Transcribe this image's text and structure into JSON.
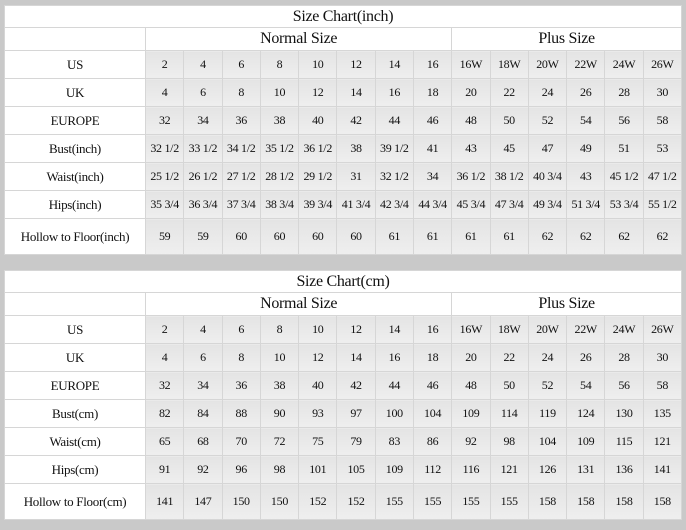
{
  "tables": [
    {
      "title": "Size Chart(inch)",
      "groups": [
        {
          "label": "Normal Size",
          "span": 8
        },
        {
          "label": "Plus Size",
          "span": 6
        }
      ],
      "rows": [
        {
          "label": "US",
          "values": [
            "2",
            "4",
            "6",
            "8",
            "10",
            "12",
            "14",
            "16",
            "16W",
            "18W",
            "20W",
            "22W",
            "24W",
            "26W"
          ]
        },
        {
          "label": "UK",
          "values": [
            "4",
            "6",
            "8",
            "10",
            "12",
            "14",
            "16",
            "18",
            "20",
            "22",
            "24",
            "26",
            "28",
            "30"
          ]
        },
        {
          "label": "EUROPE",
          "values": [
            "32",
            "34",
            "36",
            "38",
            "40",
            "42",
            "44",
            "46",
            "48",
            "50",
            "52",
            "54",
            "56",
            "58"
          ]
        },
        {
          "label": "Bust(inch)",
          "values": [
            "32 1/2",
            "33 1/2",
            "34 1/2",
            "35 1/2",
            "36 1/2",
            "38",
            "39 1/2",
            "41",
            "43",
            "45",
            "47",
            "49",
            "51",
            "53"
          ]
        },
        {
          "label": "Waist(inch)",
          "values": [
            "25 1/2",
            "26 1/2",
            "27 1/2",
            "28 1/2",
            "29 1/2",
            "31",
            "32 1/2",
            "34",
            "36 1/2",
            "38 1/2",
            "40 3/4",
            "43",
            "45 1/2",
            "47 1/2"
          ]
        },
        {
          "label": "Hips(inch)",
          "values": [
            "35 3/4",
            "36 3/4",
            "37 3/4",
            "38 3/4",
            "39 3/4",
            "41 3/4",
            "42 3/4",
            "44 3/4",
            "45 3/4",
            "47 3/4",
            "49 3/4",
            "51 3/4",
            "53 3/4",
            "55 1/2"
          ]
        },
        {
          "label": "Hollow to Floor(inch)",
          "values": [
            "59",
            "59",
            "60",
            "60",
            "60",
            "60",
            "61",
            "61",
            "61",
            "61",
            "62",
            "62",
            "62",
            "62"
          ]
        }
      ]
    },
    {
      "title": "Size Chart(cm)",
      "groups": [
        {
          "label": "Normal Size",
          "span": 8
        },
        {
          "label": "Plus Size",
          "span": 6
        }
      ],
      "rows": [
        {
          "label": "US",
          "values": [
            "2",
            "4",
            "6",
            "8",
            "10",
            "12",
            "14",
            "16",
            "16W",
            "18W",
            "20W",
            "22W",
            "24W",
            "26W"
          ]
        },
        {
          "label": "UK",
          "values": [
            "4",
            "6",
            "8",
            "10",
            "12",
            "14",
            "16",
            "18",
            "20",
            "22",
            "24",
            "26",
            "28",
            "30"
          ]
        },
        {
          "label": "EUROPE",
          "values": [
            "32",
            "34",
            "36",
            "38",
            "40",
            "42",
            "44",
            "46",
            "48",
            "50",
            "52",
            "54",
            "56",
            "58"
          ]
        },
        {
          "label": "Bust(cm)",
          "values": [
            "82",
            "84",
            "88",
            "90",
            "93",
            "97",
            "100",
            "104",
            "109",
            "114",
            "119",
            "124",
            "130",
            "135"
          ]
        },
        {
          "label": "Waist(cm)",
          "values": [
            "65",
            "68",
            "70",
            "72",
            "75",
            "79",
            "83",
            "86",
            "92",
            "98",
            "104",
            "109",
            "115",
            "121"
          ]
        },
        {
          "label": "Hips(cm)",
          "values": [
            "91",
            "92",
            "96",
            "98",
            "101",
            "105",
            "109",
            "112",
            "116",
            "121",
            "126",
            "131",
            "136",
            "141"
          ]
        },
        {
          "label": "Hollow to Floor(cm)",
          "values": [
            "141",
            "147",
            "150",
            "150",
            "152",
            "152",
            "155",
            "155",
            "155",
            "155",
            "158",
            "158",
            "158",
            "158"
          ]
        }
      ]
    }
  ]
}
